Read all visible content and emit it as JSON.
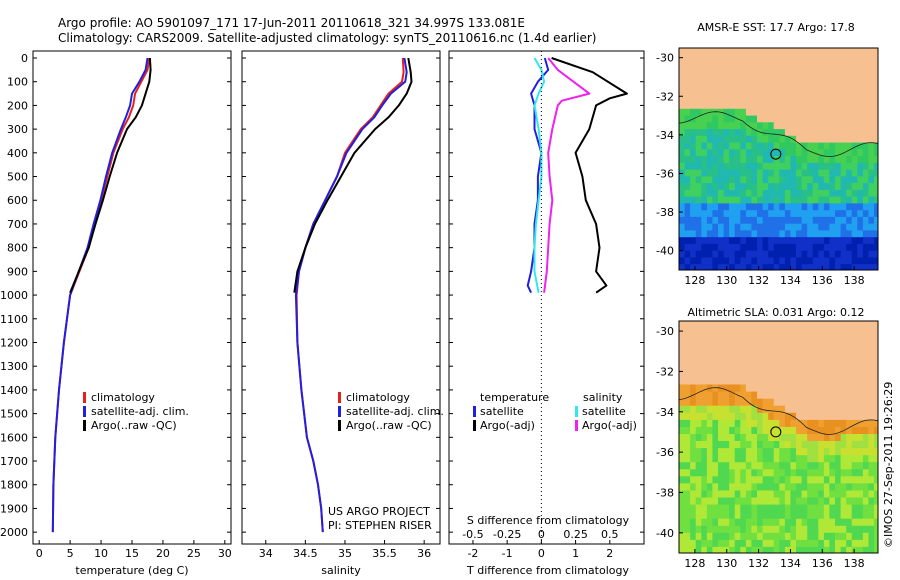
{
  "header": {
    "line1": "Argo profile: AO 5901097_171 17-Jun-2011 20110618_321 34.997S 133.081E",
    "line2": "Climatology: CARS2009. Satellite-adjusted climatology: synTS_20110616.nc (1.4d earlier)"
  },
  "footer": {
    "project": "US ARGO PROJECT",
    "pi": "PI: STEPHEN RISER",
    "stamp": "©IMOS 27-Sep-2011 19:26:29"
  },
  "colors": {
    "climatology": "#e8201c",
    "satellite": "#2020e0",
    "argo": "#000000",
    "sal_satellite": "#30e8f0",
    "sal_argo": "#f020f0",
    "land": "#f7c090"
  },
  "chart_data": [
    {
      "type": "line",
      "name": "temperature",
      "xlabel": "temperature (deg C)",
      "ylabel": "",
      "xlim": [
        -1,
        31
      ],
      "ylim": [
        2050,
        0
      ],
      "xticks": [
        "0",
        "5",
        "10",
        "15",
        "20",
        "25",
        "30"
      ],
      "yticks": [
        "0",
        "100",
        "200",
        "300",
        "400",
        "500",
        "600",
        "700",
        "800",
        "900",
        "1000",
        "1100",
        "1200",
        "1300",
        "1400",
        "1500",
        "1600",
        "1700",
        "1800",
        "1900",
        "2000"
      ],
      "legend": [
        "climatology",
        "satellite-adj. clim.",
        "Argo(..raw -QC)"
      ],
      "series": [
        {
          "name": "climatology",
          "color": "#e8201c",
          "x": [
            17.8,
            17.5,
            16.5,
            15.5,
            15.2,
            14.5,
            13.5,
            12.0,
            11.0,
            10.0,
            9.0,
            8.0,
            6.5,
            5.0,
            4.0,
            3.2,
            2.6,
            2.3,
            2.2
          ],
          "y": [
            0,
            50,
            100,
            150,
            200,
            250,
            300,
            400,
            500,
            600,
            700,
            800,
            900,
            1000,
            1200,
            1400,
            1600,
            1800,
            2000
          ]
        },
        {
          "name": "satellite-adj. clim.",
          "color": "#2020e0",
          "x": [
            17.5,
            17.2,
            16.2,
            15.0,
            14.7,
            14.0,
            13.2,
            11.8,
            10.8,
            9.9,
            8.8,
            7.8,
            6.4,
            5.0,
            4.0,
            3.2,
            2.6,
            2.3,
            2.2
          ],
          "y": [
            0,
            50,
            100,
            150,
            200,
            250,
            300,
            400,
            500,
            600,
            700,
            800,
            900,
            1000,
            1200,
            1400,
            1600,
            1800,
            2000
          ]
        },
        {
          "name": "Argo(..raw -QC)",
          "color": "#000000",
          "x": [
            17.9,
            18.0,
            17.8,
            17.2,
            16.6,
            15.6,
            14.2,
            12.6,
            11.4,
            10.3,
            9.1,
            8.0,
            6.4,
            5.0
          ],
          "y": [
            0,
            50,
            100,
            150,
            200,
            250,
            300,
            400,
            500,
            600,
            700,
            800,
            900,
            990
          ]
        }
      ]
    },
    {
      "type": "line",
      "name": "salinity",
      "xlabel": "salinity",
      "xlim": [
        33.7,
        36.2
      ],
      "ylim": [
        2050,
        0
      ],
      "xticks": [
        "34",
        "34.5",
        "35",
        "35.5",
        "36"
      ],
      "legend": [
        "climatology",
        "satellite-adj. clim.",
        "Argo(..raw -QC)"
      ],
      "series": [
        {
          "name": "climatology",
          "color": "#e8201c",
          "x": [
            35.73,
            35.74,
            35.72,
            35.55,
            35.45,
            35.35,
            35.2,
            35.0,
            34.9,
            34.75,
            34.6,
            34.5,
            34.42,
            34.39,
            34.4,
            34.45,
            34.52,
            34.6,
            34.66,
            34.7,
            34.72
          ],
          "y": [
            0,
            60,
            100,
            150,
            200,
            250,
            300,
            400,
            500,
            600,
            700,
            800,
            900,
            1000,
            1200,
            1400,
            1600,
            1700,
            1800,
            1900,
            2000
          ]
        },
        {
          "name": "satellite-adj. clim.",
          "color": "#2020e0",
          "x": [
            35.75,
            35.78,
            35.76,
            35.58,
            35.47,
            35.37,
            35.22,
            35.02,
            34.9,
            34.75,
            34.6,
            34.5,
            34.42,
            34.38,
            34.4,
            34.45,
            34.52,
            34.6,
            34.66,
            34.7,
            34.72
          ],
          "y": [
            0,
            60,
            100,
            150,
            200,
            250,
            300,
            400,
            500,
            600,
            700,
            800,
            900,
            1000,
            1200,
            1400,
            1600,
            1700,
            1800,
            1900,
            2000
          ]
        },
        {
          "name": "Argo(..raw -QC)",
          "color": "#000000",
          "x": [
            35.8,
            35.83,
            35.84,
            35.78,
            35.68,
            35.55,
            35.38,
            35.12,
            34.95,
            34.78,
            34.62,
            34.5,
            34.4,
            34.36
          ],
          "y": [
            0,
            60,
            100,
            150,
            200,
            250,
            300,
            400,
            500,
            600,
            700,
            800,
            900,
            990
          ]
        }
      ]
    },
    {
      "type": "line",
      "name": "difference",
      "xlabel": "T difference from climatology",
      "xlabel_top": "S difference from climatology",
      "xlim": [
        -2.7,
        3.0
      ],
      "ylim": [
        2050,
        0
      ],
      "xticks": [
        "-2",
        "-1",
        "0",
        "1",
        "2"
      ],
      "xticks_top": [
        "-0.5",
        "-0.25",
        "0",
        "0.25",
        "0.5"
      ],
      "legend": {
        "temperature_header": "temperature",
        "salinity_header": "salinity",
        "items": [
          "satellite",
          "Argo(-adj)",
          "satellite",
          "Argo(-adj)"
        ]
      },
      "series": [
        {
          "name": "temperature satellite",
          "color": "#2020e0",
          "x": [
            0.1,
            0.2,
            -0.1,
            -0.3,
            -0.2,
            -0.2,
            0,
            -0.1,
            -0.1,
            -0.2,
            -0.2,
            -0.3,
            -0.4,
            -0.3
          ],
          "y": [
            0,
            50,
            100,
            150,
            200,
            300,
            400,
            500,
            600,
            700,
            800,
            900,
            960,
            990
          ]
        },
        {
          "name": "temperature Argo(-adj)",
          "color": "#000000",
          "x": [
            0.3,
            1.5,
            2.5,
            2.0,
            1.6,
            1.4,
            1.0,
            1.2,
            1.3,
            1.6,
            1.7,
            1.6,
            1.9,
            1.6
          ],
          "y": [
            0,
            60,
            150,
            170,
            200,
            300,
            400,
            500,
            600,
            700,
            800,
            900,
            960,
            990
          ]
        },
        {
          "name": "salinity satellite",
          "color": "#30e8f0",
          "x": [
            -0.05,
            0.0,
            0.02,
            -0.02,
            -0.05,
            -0.02,
            0,
            0,
            -0.02,
            -0.04,
            -0.05,
            -0.05,
            -0.02
          ],
          "y": [
            0,
            50,
            100,
            150,
            200,
            300,
            400,
            500,
            600,
            700,
            800,
            900,
            990
          ]
        },
        {
          "name": "salinity Argo(-adj)",
          "color": "#f020f0",
          "x": [
            0.05,
            0.12,
            0.35,
            0.15,
            0.12,
            0.08,
            0.05,
            0.06,
            0.08,
            0.06,
            0.05,
            0.04,
            0.02
          ],
          "y": [
            0,
            50,
            150,
            180,
            200,
            300,
            400,
            500,
            600,
            700,
            800,
            900,
            990
          ]
        }
      ]
    },
    {
      "type": "heatmap",
      "name": "sst_map",
      "title": "AMSR-E SST: 17.7 Argo: 17.8",
      "xlim": [
        127,
        139.5
      ],
      "ylim": [
        -41,
        -29.5
      ],
      "xticks": [
        "128",
        "130",
        "132",
        "134",
        "136",
        "138"
      ],
      "yticks": [
        "-30",
        "-32",
        "-34",
        "-36",
        "-38",
        "-40"
      ],
      "marker": {
        "lon": 133.081,
        "lat": -34.997
      }
    },
    {
      "type": "heatmap",
      "name": "sla_map",
      "title": "Altimetric SLA: 0.031 Argo: 0.12",
      "xlim": [
        127,
        139.5
      ],
      "ylim": [
        -41,
        -29.5
      ],
      "xticks": [
        "128",
        "130",
        "132",
        "134",
        "136",
        "138"
      ],
      "yticks": [
        "-30",
        "-32",
        "-34",
        "-36",
        "-38",
        "-40"
      ],
      "marker": {
        "lon": 133.081,
        "lat": -34.997
      }
    }
  ]
}
